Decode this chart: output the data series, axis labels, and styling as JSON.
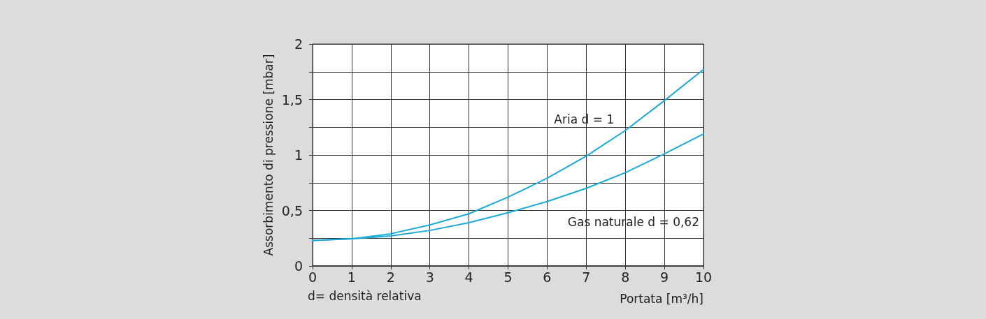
{
  "chart_data": {
    "type": "line",
    "xlabel": "Portata [m³/h]",
    "ylabel": "Assorbimento di pressione [mbar]",
    "annotations": [
      "d= densità relativa"
    ],
    "x": [
      0,
      1,
      2,
      3,
      4,
      5,
      6,
      7,
      8,
      9,
      10
    ],
    "series": [
      {
        "name": "Aria d = 1",
        "color": "#1ba9d6",
        "values": [
          0.23,
          0.245,
          0.29,
          0.37,
          0.47,
          0.62,
          0.79,
          0.99,
          1.22,
          1.49,
          1.77
        ]
      },
      {
        "name": "Gas naturale d = 0,62",
        "color": "#1ba9d6",
        "values": [
          0.23,
          0.245,
          0.27,
          0.32,
          0.39,
          0.48,
          0.58,
          0.7,
          0.84,
          1.01,
          1.19
        ]
      }
    ],
    "xlim": [
      0,
      10
    ],
    "xticks": [
      0,
      1,
      2,
      3,
      4,
      5,
      6,
      7,
      8,
      9,
      10
    ],
    "ylim": [
      0,
      2
    ],
    "yticks": [
      0,
      {
        "value": 0.25,
        "label": null
      },
      {
        "value": 0.5,
        "label": "0,5"
      },
      {
        "value": 0.75,
        "label": null
      },
      1,
      {
        "value": 1.25,
        "label": null
      },
      {
        "value": 1.5,
        "label": "1,5"
      },
      {
        "value": 1.75,
        "label": null
      },
      2
    ],
    "grid": true,
    "legend": false,
    "marker": "none",
    "line_style": "solid"
  }
}
